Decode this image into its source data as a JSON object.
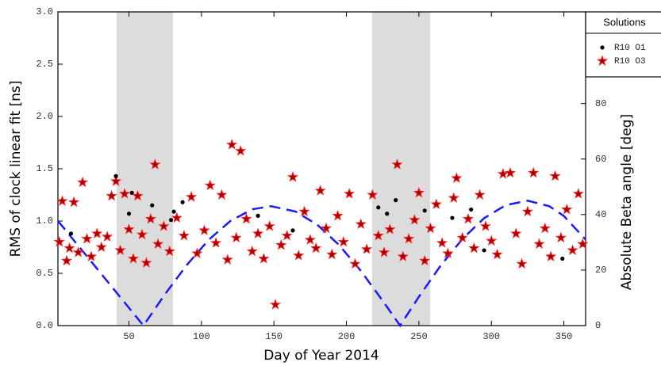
{
  "chart_data": {
    "type": "scatter",
    "xlabel": "Day of Year 2014",
    "ylabel": "RMS of clock linear fit [ns]",
    "y2label": "Absolute Beta angle [deg]",
    "legend_title": "Solutions",
    "legend": "upper right outside",
    "xlim": [
      1,
      365
    ],
    "xticks": [
      50,
      100,
      150,
      200,
      250,
      300,
      350
    ],
    "ylim": [
      0,
      3
    ],
    "yticks": [
      {
        "value": 0,
        "label": "0.0"
      },
      0.5,
      {
        "value": 1,
        "label": "1.0"
      },
      1.5,
      {
        "value": 2,
        "label": "2.0"
      },
      2.5,
      {
        "value": 3,
        "label": "3.0"
      }
    ],
    "y2lim": [
      0,
      113
    ],
    "y2ticks": [
      0,
      20,
      40,
      60,
      80
    ],
    "shaded_ranges": [
      [
        41.5,
        80.4
      ],
      [
        217.7,
        257.7
      ]
    ],
    "shade_color": "#dcdcdc",
    "series": [
      {
        "name": "R10 O1",
        "color": "#000000",
        "marker": "dot",
        "x": [
          10,
          41,
          50,
          52,
          66,
          79,
          81,
          87,
          139,
          163,
          222,
          228,
          234,
          254,
          273,
          286,
          295,
          349
        ],
        "values": [
          0.88,
          1.43,
          1.07,
          1.27,
          1.15,
          1.01,
          1.09,
          1.18,
          1.05,
          0.91,
          1.13,
          1.07,
          1.2,
          1.1,
          1.03,
          1.11,
          0.72,
          0.64
        ]
      },
      {
        "name": "R10 O3",
        "color": "#ff2020",
        "marker": "star",
        "x": [
          2,
          4,
          7,
          9,
          12,
          15,
          18,
          21,
          24,
          28,
          31,
          35,
          38,
          41,
          44,
          47,
          50,
          53,
          56,
          59,
          62,
          65,
          68,
          70,
          74,
          78,
          83,
          88,
          93,
          97,
          102,
          106,
          110,
          114,
          118,
          121,
          124,
          127,
          131,
          135,
          139,
          143,
          147,
          151,
          155,
          159,
          163,
          167,
          171,
          175,
          179,
          182,
          186,
          190,
          194,
          198,
          202,
          206,
          210,
          214,
          218,
          222,
          226,
          230,
          235,
          239,
          243,
          247,
          250,
          254,
          258,
          262,
          266,
          270,
          274,
          276,
          280,
          284,
          288,
          292,
          296,
          300,
          304,
          308,
          313,
          317,
          321,
          325,
          329,
          333,
          337,
          341,
          344,
          348,
          352,
          356,
          360,
          363
        ],
        "values": [
          0.8,
          1.19,
          0.62,
          0.74,
          1.18,
          0.7,
          1.37,
          0.83,
          0.66,
          0.88,
          0.75,
          0.85,
          1.24,
          1.38,
          0.72,
          1.26,
          0.92,
          0.64,
          1.24,
          0.87,
          0.6,
          1.02,
          1.54,
          0.78,
          0.95,
          0.71,
          1.03,
          0.86,
          1.23,
          0.69,
          0.91,
          1.34,
          0.79,
          1.25,
          0.63,
          1.73,
          0.84,
          1.67,
          1.02,
          0.71,
          0.88,
          0.64,
          0.95,
          0.2,
          0.77,
          0.86,
          1.42,
          0.67,
          1.09,
          0.82,
          0.74,
          1.29,
          0.93,
          0.68,
          1.05,
          0.8,
          1.26,
          0.59,
          0.97,
          0.73,
          1.25,
          0.86,
          0.7,
          0.92,
          1.54,
          0.66,
          0.83,
          1.01,
          1.27,
          0.62,
          0.93,
          1.16,
          0.79,
          0.69,
          1.22,
          1.41,
          0.84,
          1.02,
          0.74,
          1.25,
          0.95,
          0.81,
          0.68,
          1.45,
          1.46,
          0.88,
          0.59,
          1.09,
          1.46,
          0.78,
          0.93,
          0.66,
          1.43,
          0.84,
          1.11,
          0.72,
          1.26,
          0.78
        ]
      }
    ],
    "beta": {
      "name": "Absolute Beta angle",
      "color": "#1a1aff",
      "axis": "y2",
      "x": [
        1,
        15,
        30,
        45,
        60,
        75,
        90,
        105,
        120,
        135,
        148,
        165,
        180,
        195,
        210,
        225,
        237,
        250,
        265,
        280,
        295,
        310,
        325,
        340,
        350,
        365
      ],
      "values": [
        37.7,
        28.8,
        19.2,
        9.6,
        0,
        11.4,
        21.9,
        30.9,
        37.7,
        41.9,
        43,
        41.1,
        36.3,
        29,
        19.7,
        9,
        0,
        10.4,
        21.6,
        31.2,
        38.7,
        43.4,
        45,
        43,
        39.5,
        31
      ]
    }
  }
}
